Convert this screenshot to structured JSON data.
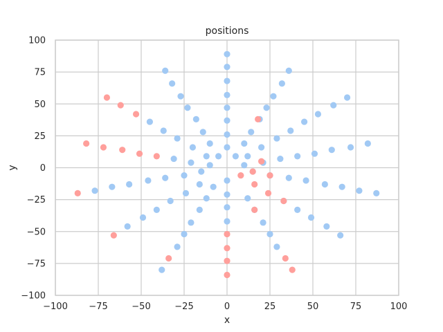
{
  "chart_data": {
    "type": "scatter",
    "title": "positions",
    "xlabel": "x",
    "ylabel": "y",
    "xlim": [
      -100,
      100
    ],
    "ylim": [
      -100,
      100
    ],
    "x_ticks": [
      "−100",
      "−75",
      "−50",
      "−25",
      "0",
      "25",
      "50",
      "75",
      "100"
    ],
    "y_ticks": [
      "−100",
      "−75",
      "−50",
      "−25",
      "0",
      "25",
      "50",
      "75",
      "100"
    ],
    "grid": true,
    "legend": "none",
    "colors": {
      "series_blue": "#a1c9f4",
      "series_red": "#ff9f9b",
      "grid": "#cccccc",
      "frame": "#cccccc"
    },
    "series": [
      {
        "color": "#a1c9f4",
        "points": [
          [
            0,
            89
          ],
          [
            0,
            79
          ],
          [
            0,
            68
          ],
          [
            0,
            57
          ],
          [
            0,
            47
          ],
          [
            0,
            37
          ],
          [
            0,
            26
          ],
          [
            0,
            16
          ],
          [
            0,
            -10
          ],
          [
            0,
            -21
          ],
          [
            0,
            -31
          ],
          [
            0,
            -42
          ],
          [
            36,
            76
          ],
          [
            32,
            66
          ],
          [
            27,
            56
          ],
          [
            23,
            47
          ],
          [
            19,
            38
          ],
          [
            14,
            28
          ],
          [
            10,
            19
          ],
          [
            5,
            9
          ],
          [
            -36,
            76
          ],
          [
            -32,
            66
          ],
          [
            -27,
            56
          ],
          [
            -23,
            47
          ],
          [
            -18,
            38
          ],
          [
            -14,
            28
          ],
          [
            -10,
            19
          ],
          [
            -5,
            9
          ],
          [
            70,
            55
          ],
          [
            62,
            49
          ],
          [
            53,
            42
          ],
          [
            45,
            36
          ],
          [
            37,
            29
          ],
          [
            29,
            23
          ],
          [
            20,
            16
          ],
          [
            12,
            9
          ],
          [
            -45,
            36
          ],
          [
            -37,
            29
          ],
          [
            -29,
            23
          ],
          [
            -20,
            16
          ],
          [
            -12,
            9
          ],
          [
            82,
            19
          ],
          [
            72,
            16
          ],
          [
            61,
            14
          ],
          [
            51,
            11
          ],
          [
            41,
            9
          ],
          [
            31,
            7
          ],
          [
            21,
            4
          ],
          [
            10,
            2
          ],
          [
            -31,
            7
          ],
          [
            -21,
            4
          ],
          [
            -10,
            2
          ],
          [
            87,
            -20
          ],
          [
            77,
            -18
          ],
          [
            -77,
            -18
          ],
          [
            67,
            -15
          ],
          [
            -67,
            -15
          ],
          [
            57,
            -13
          ],
          [
            -57,
            -13
          ],
          [
            46,
            -10
          ],
          [
            -46,
            -10
          ],
          [
            36,
            -8
          ],
          [
            -36,
            -8
          ],
          [
            25,
            -6
          ],
          [
            -25,
            -6
          ],
          [
            15,
            -3
          ],
          [
            -15,
            -3
          ],
          [
            -8,
            -15
          ],
          [
            -16,
            -13
          ],
          [
            -24,
            -20
          ],
          [
            58,
            -46
          ],
          [
            -58,
            -46
          ],
          [
            49,
            -39
          ],
          [
            -49,
            -39
          ],
          [
            41,
            -33
          ],
          [
            -41,
            -33
          ],
          [
            33,
            -26
          ],
          [
            -33,
            -26
          ],
          [
            12,
            -24
          ],
          [
            -12,
            -24
          ],
          [
            16,
            -33
          ],
          [
            -16,
            -33
          ],
          [
            66,
            -53
          ],
          [
            21,
            -43
          ],
          [
            -21,
            -43
          ],
          [
            25,
            -52
          ],
          [
            -25,
            -52
          ],
          [
            29,
            -62
          ],
          [
            -29,
            -62
          ],
          [
            -38,
            -80
          ]
        ]
      },
      {
        "color": "#ff9f9b",
        "points": [
          [
            -70,
            55
          ],
          [
            -62,
            49
          ],
          [
            -53,
            42
          ],
          [
            -82,
            19
          ],
          [
            -72,
            16
          ],
          [
            -61,
            14
          ],
          [
            -51,
            11
          ],
          [
            -41,
            9
          ],
          [
            -87,
            -20
          ],
          [
            -66,
            -53
          ],
          [
            18,
            38
          ],
          [
            20,
            5
          ],
          [
            15,
            -3
          ],
          [
            8,
            -6
          ],
          [
            25,
            -6
          ],
          [
            16,
            -13
          ],
          [
            24,
            -20
          ],
          [
            33,
            -26
          ],
          [
            16,
            -33
          ],
          [
            0,
            -52
          ],
          [
            0,
            -63
          ],
          [
            0,
            -73
          ],
          [
            0,
            -84
          ],
          [
            34,
            -71
          ],
          [
            -34,
            -71
          ],
          [
            38,
            -80
          ]
        ]
      }
    ]
  }
}
